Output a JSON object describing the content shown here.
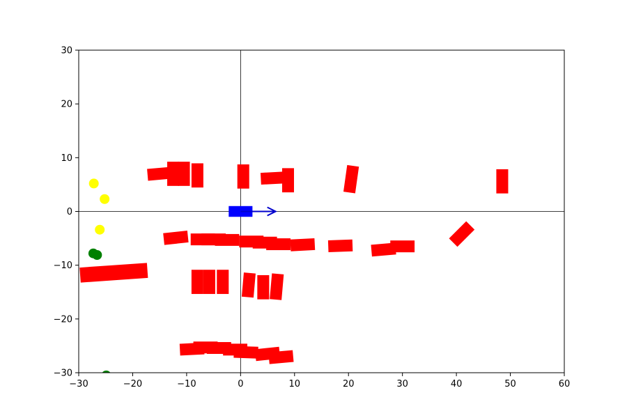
{
  "chart_data": {
    "type": "scatter",
    "title": "",
    "xlabel": "",
    "ylabel": "",
    "xlim": [
      -30,
      60
    ],
    "ylim": [
      -30,
      30
    ],
    "x_ticks": [
      -30,
      -20,
      -10,
      0,
      10,
      20,
      30,
      40,
      50,
      60
    ],
    "y_ticks": [
      -30,
      -20,
      -10,
      0,
      10,
      20,
      30
    ],
    "x_tick_labels": [
      "−30",
      "−20",
      "−10",
      "0",
      "10",
      "20",
      "30",
      "40",
      "50",
      "60"
    ],
    "y_tick_labels": [
      "−30",
      "−20",
      "−10",
      "0",
      "10",
      "20",
      "30"
    ],
    "grid": false,
    "reference_lines": {
      "x": 0,
      "y": 0
    },
    "colors": {
      "obstacle": "#ff0000",
      "ego": "#0000ff",
      "arrow": "#0000cc",
      "yellow_marker": "#ffff00",
      "green_marker": "#008000",
      "axis": "#000000"
    },
    "ego_vehicle": {
      "x": 0,
      "y": 0,
      "length": 4.4,
      "width": 2.0,
      "heading_deg": 0,
      "arrow": {
        "x0": 0,
        "y0": 0,
        "x1": 6.5,
        "y1": 0
      }
    },
    "obstacles": [
      {
        "x": -15,
        "y": 7,
        "length": 4.5,
        "width": 2.2,
        "angle": 5
      },
      {
        "x": -12.5,
        "y": 7,
        "length": 2.2,
        "width": 4.5,
        "angle": 0
      },
      {
        "x": -10.5,
        "y": 7,
        "length": 2.2,
        "width": 4.5,
        "angle": 0
      },
      {
        "x": -8,
        "y": 6.7,
        "length": 2.2,
        "width": 4.5,
        "angle": 0
      },
      {
        "x": 0.5,
        "y": 6.5,
        "length": 2.2,
        "width": 4.5,
        "angle": 0
      },
      {
        "x": 6,
        "y": 6.2,
        "length": 4.5,
        "width": 2.2,
        "angle": 3
      },
      {
        "x": 8.8,
        "y": 5.8,
        "length": 2.2,
        "width": 4.5,
        "angle": 0
      },
      {
        "x": 20.5,
        "y": 6,
        "length": 2.2,
        "width": 5.0,
        "angle": -8
      },
      {
        "x": 48.5,
        "y": 5.6,
        "length": 2.2,
        "width": 4.5,
        "angle": 0
      },
      {
        "x": -12,
        "y": -4.9,
        "length": 4.5,
        "width": 2.2,
        "angle": 6
      },
      {
        "x": -7,
        "y": -5.2,
        "length": 4.5,
        "width": 2.2,
        "angle": 0
      },
      {
        "x": -5,
        "y": -5.2,
        "length": 4.5,
        "width": 2.2,
        "angle": 0
      },
      {
        "x": -2.5,
        "y": -5.3,
        "length": 4.5,
        "width": 2.2,
        "angle": 0
      },
      {
        "x": 2,
        "y": -5.6,
        "length": 4.5,
        "width": 2.2,
        "angle": 0
      },
      {
        "x": 4.5,
        "y": -5.8,
        "length": 4.5,
        "width": 2.2,
        "angle": 0
      },
      {
        "x": 7,
        "y": -6.1,
        "length": 4.5,
        "width": 2.2,
        "angle": 0
      },
      {
        "x": 11.5,
        "y": -6.2,
        "length": 4.5,
        "width": 2.2,
        "angle": 3
      },
      {
        "x": 18.5,
        "y": -6.4,
        "length": 4.5,
        "width": 2.2,
        "angle": 2
      },
      {
        "x": 26.5,
        "y": -7.1,
        "length": 4.5,
        "width": 2.2,
        "angle": 5
      },
      {
        "x": 30,
        "y": -6.5,
        "length": 4.5,
        "width": 2.2,
        "angle": 0
      },
      {
        "x": 41,
        "y": -4.2,
        "length": 4.5,
        "width": 2.2,
        "angle": 45
      },
      {
        "x": -23.5,
        "y": -11.4,
        "length": 12.5,
        "width": 2.8,
        "angle": 4
      },
      {
        "x": -8,
        "y": -13.1,
        "length": 2.2,
        "width": 4.5,
        "angle": 0
      },
      {
        "x": -5.8,
        "y": -13.1,
        "length": 2.2,
        "width": 4.5,
        "angle": 0
      },
      {
        "x": -3.3,
        "y": -13.1,
        "length": 2.2,
        "width": 4.5,
        "angle": 0
      },
      {
        "x": 1.5,
        "y": -13.7,
        "length": 2.2,
        "width": 4.5,
        "angle": -5
      },
      {
        "x": 4.2,
        "y": -14.1,
        "length": 2.2,
        "width": 4.5,
        "angle": 0
      },
      {
        "x": 6.7,
        "y": -14,
        "length": 2.2,
        "width": 4.8,
        "angle": -5
      },
      {
        "x": -9,
        "y": -25.6,
        "length": 4.5,
        "width": 2.2,
        "angle": 3
      },
      {
        "x": -6.5,
        "y": -25.3,
        "length": 4.5,
        "width": 2.2,
        "angle": 0
      },
      {
        "x": -4,
        "y": -25.4,
        "length": 4.5,
        "width": 2.2,
        "angle": 0
      },
      {
        "x": -1,
        "y": -25.7,
        "length": 4.5,
        "width": 2.2,
        "angle": 0
      },
      {
        "x": 1,
        "y": -26.2,
        "length": 4.5,
        "width": 2.2,
        "angle": -2
      },
      {
        "x": 5,
        "y": -26.5,
        "length": 4.5,
        "width": 2.2,
        "angle": 6
      },
      {
        "x": 7.5,
        "y": -27.1,
        "length": 4.5,
        "width": 2.2,
        "angle": 5
      }
    ],
    "yellow_markers": [
      {
        "x": -27.2,
        "y": 5.2
      },
      {
        "x": -25.2,
        "y": 2.3
      },
      {
        "x": -26.1,
        "y": -3.4
      }
    ],
    "green_markers": [
      {
        "x": -27.3,
        "y": -7.8
      },
      {
        "x": -26.6,
        "y": -8.1
      },
      {
        "x": -24.9,
        "y": -30.5
      }
    ]
  }
}
